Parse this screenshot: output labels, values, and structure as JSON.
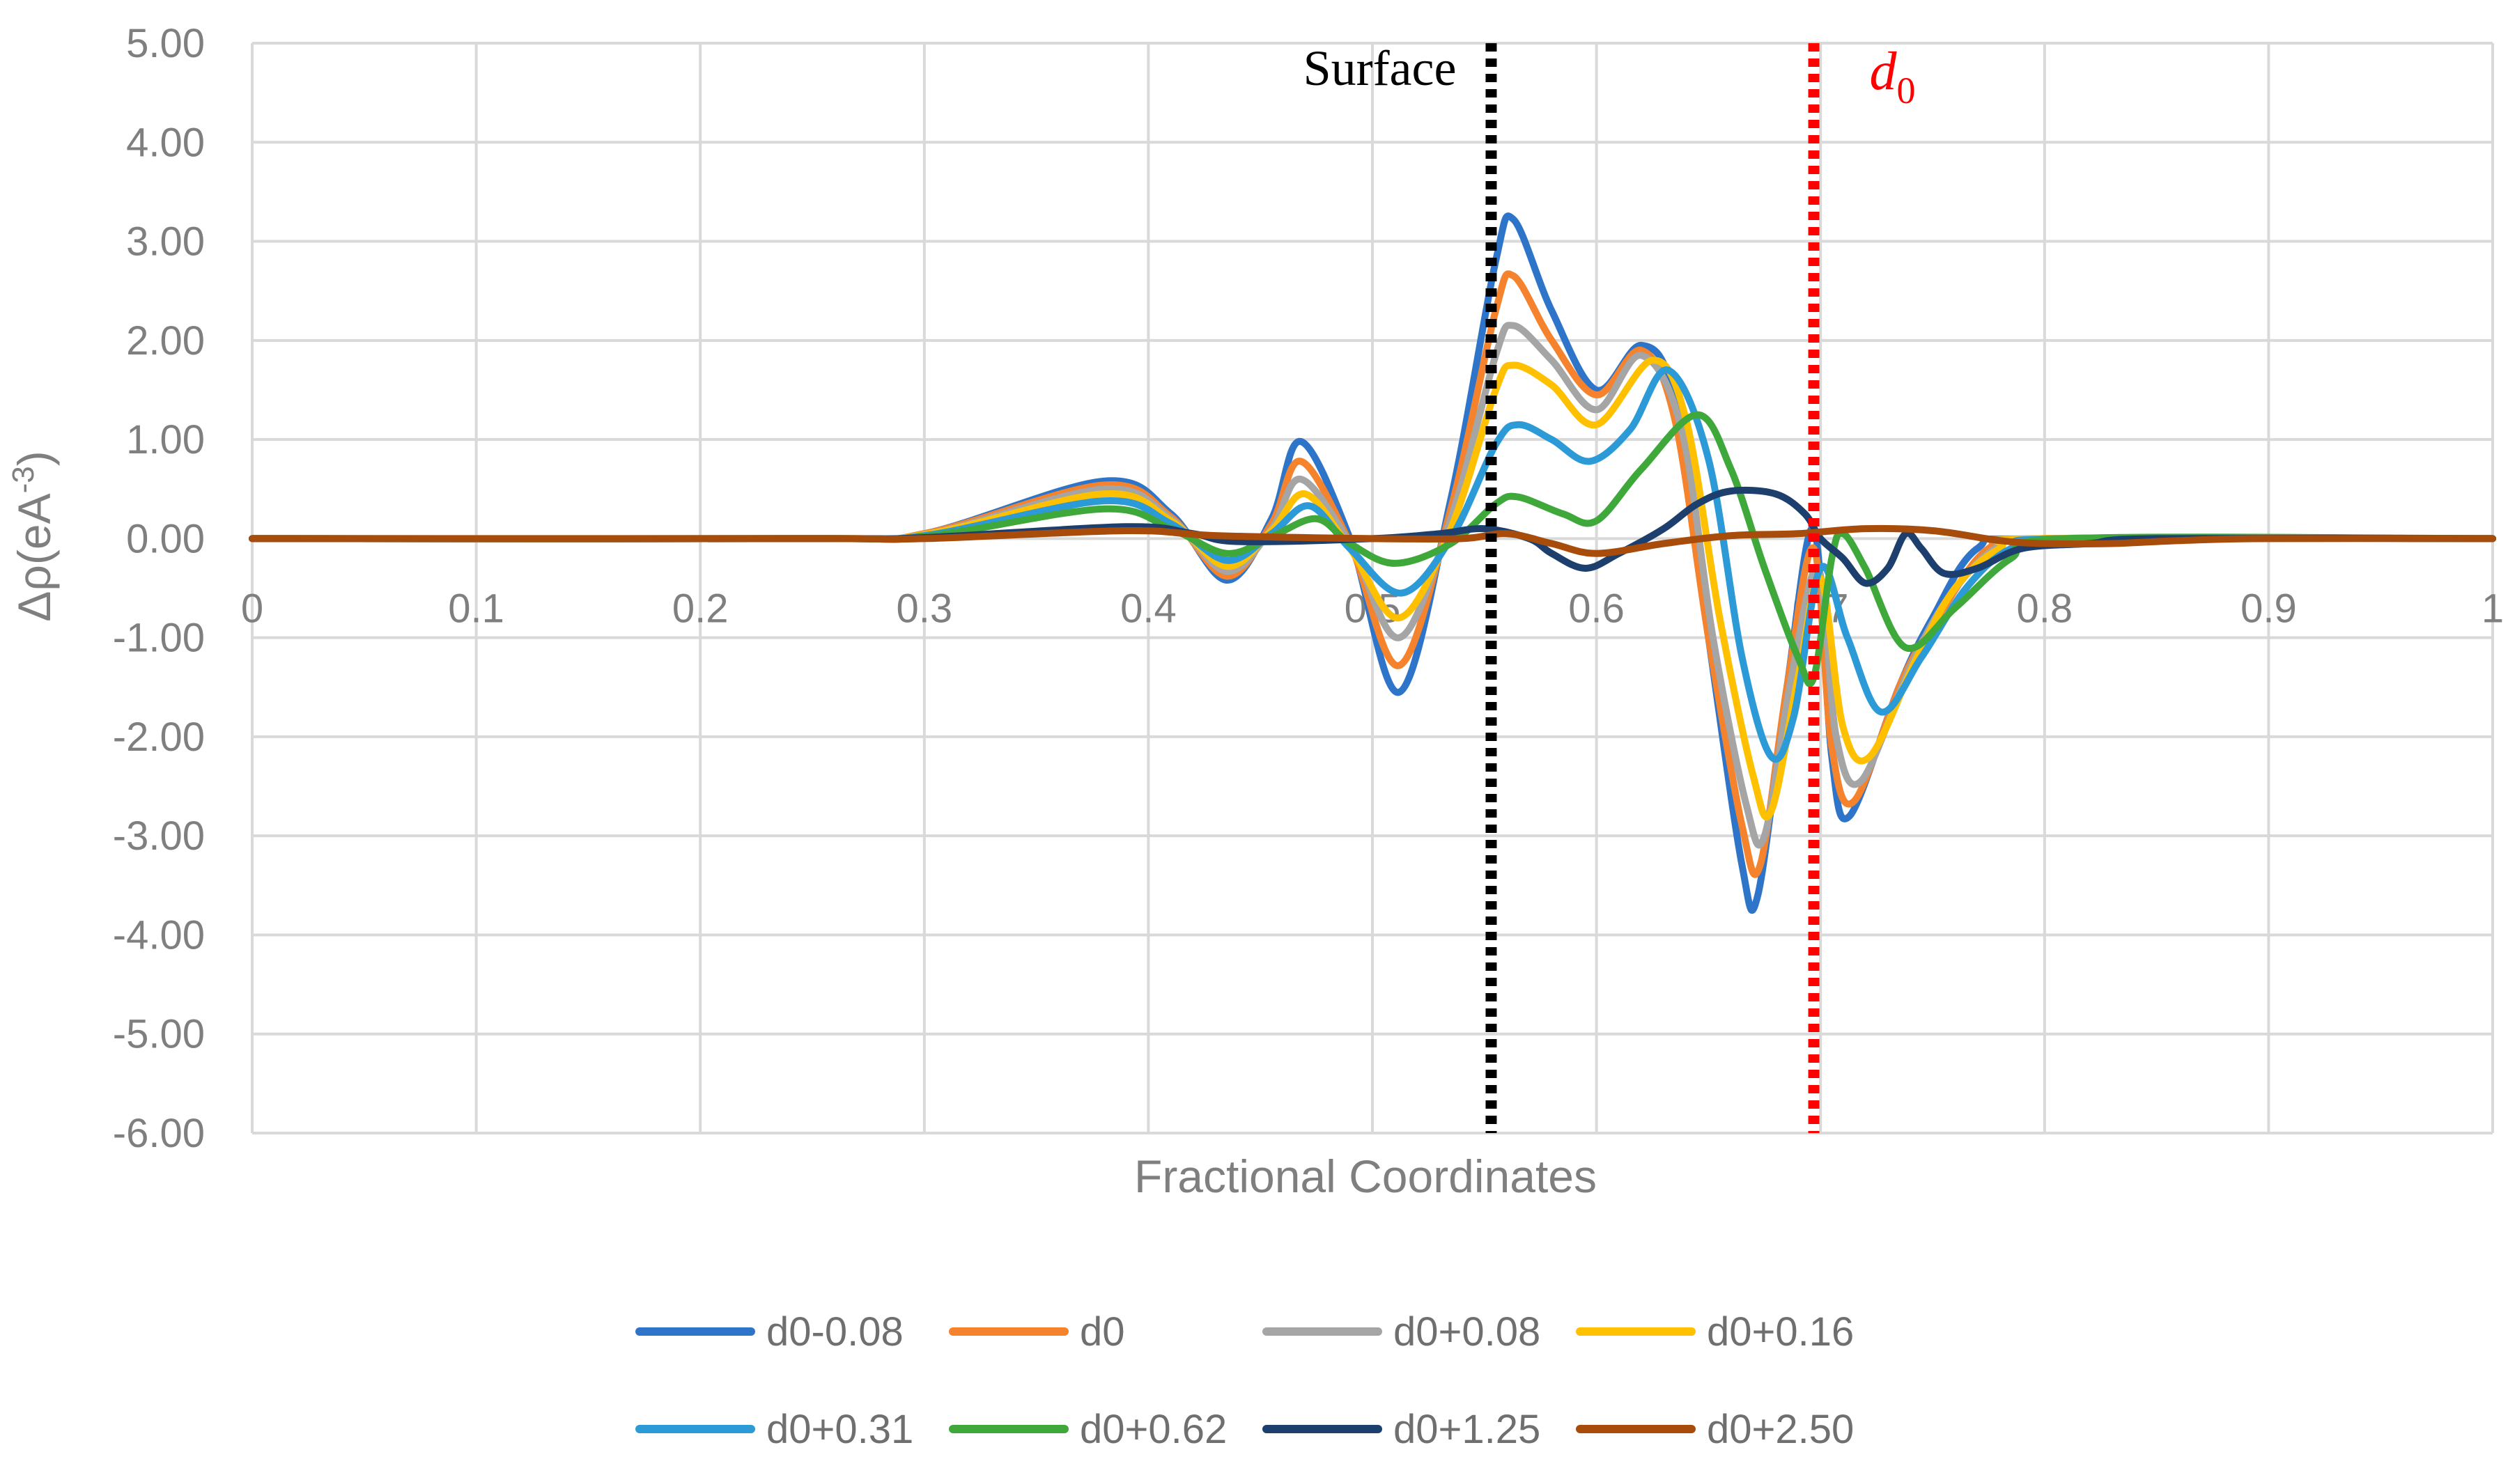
{
  "chart_data": {
    "type": "line",
    "title": "",
    "xlabel": "Fractional Coordinates",
    "ylabel": "Δρ(eA",
    "ylabel_sup": "-3",
    "ylabel_close": ")",
    "xlim": [
      0,
      1
    ],
    "ylim": [
      -6,
      5
    ],
    "grid": true,
    "legend_position": "bottom",
    "y_ticks": [
      {
        "value": 5,
        "label": "5.00"
      },
      {
        "value": 4,
        "label": "4.00"
      },
      {
        "value": 3,
        "label": "3.00"
      },
      {
        "value": 2,
        "label": "2.00"
      },
      {
        "value": 1,
        "label": "1.00"
      },
      {
        "value": 0,
        "label": "0.00"
      },
      {
        "value": -1,
        "label": "-1.00"
      },
      {
        "value": -2,
        "label": "-2.00"
      },
      {
        "value": -3,
        "label": "-3.00"
      },
      {
        "value": -4,
        "label": "-4.00"
      },
      {
        "value": -5,
        "label": "-5.00"
      },
      {
        "value": -6,
        "label": "-6.00"
      }
    ],
    "x_ticks": [
      {
        "value": 0,
        "label": "0"
      },
      {
        "value": 0.1,
        "label": "0.1"
      },
      {
        "value": 0.2,
        "label": "0.2"
      },
      {
        "value": 0.3,
        "label": "0.3"
      },
      {
        "value": 0.4,
        "label": "0.4"
      },
      {
        "value": 0.5,
        "label": "0.5"
      },
      {
        "value": 0.6,
        "label": "0.6"
      },
      {
        "value": 0.7,
        "label": "0.7"
      },
      {
        "value": 0.8,
        "label": "0.8"
      },
      {
        "value": 0.9,
        "label": "0.9"
      },
      {
        "value": 1,
        "label": "1"
      }
    ],
    "annotations": [
      {
        "text": "Surface",
        "x": 0.553,
        "color": "#000000",
        "style": "dotted"
      },
      {
        "text": "d",
        "subscript": "0",
        "x": 0.697,
        "color": "#ff0000",
        "style": "dotted"
      }
    ],
    "series": [
      {
        "name": "d0-0.08",
        "color": "#2e75c9",
        "points": [
          [
            0,
            0
          ],
          [
            0.25,
            0
          ],
          [
            0.3,
            0.05
          ],
          [
            0.38,
            0.58
          ],
          [
            0.41,
            0.25
          ],
          [
            0.435,
            -0.42
          ],
          [
            0.455,
            0.2
          ],
          [
            0.468,
            0.98
          ],
          [
            0.49,
            0
          ],
          [
            0.512,
            -1.55
          ],
          [
            0.535,
            0.4
          ],
          [
            0.555,
            2.8
          ],
          [
            0.563,
            3.22
          ],
          [
            0.58,
            2.3
          ],
          [
            0.6,
            1.5
          ],
          [
            0.62,
            1.95
          ],
          [
            0.635,
            1.4
          ],
          [
            0.65,
            -1.0
          ],
          [
            0.665,
            -3.3
          ],
          [
            0.672,
            -3.6
          ],
          [
            0.685,
            -1.5
          ],
          [
            0.697,
            0.1
          ],
          [
            0.705,
            -2.2
          ],
          [
            0.713,
            -2.8
          ],
          [
            0.735,
            -1.5
          ],
          [
            0.75,
            -0.8
          ],
          [
            0.77,
            -0.1
          ],
          [
            0.8,
            0
          ],
          [
            1,
            0
          ]
        ]
      },
      {
        "name": "d0",
        "color": "#f5822c",
        "points": [
          [
            0,
            0
          ],
          [
            0.25,
            0
          ],
          [
            0.3,
            0.05
          ],
          [
            0.38,
            0.54
          ],
          [
            0.41,
            0.22
          ],
          [
            0.435,
            -0.38
          ],
          [
            0.455,
            0.15
          ],
          [
            0.468,
            0.78
          ],
          [
            0.49,
            -0.05
          ],
          [
            0.512,
            -1.28
          ],
          [
            0.535,
            0.3
          ],
          [
            0.555,
            2.3
          ],
          [
            0.563,
            2.65
          ],
          [
            0.58,
            2.0
          ],
          [
            0.6,
            1.45
          ],
          [
            0.62,
            1.9
          ],
          [
            0.635,
            1.2
          ],
          [
            0.65,
            -1.0
          ],
          [
            0.665,
            -2.9
          ],
          [
            0.673,
            -3.3
          ],
          [
            0.685,
            -1.5
          ],
          [
            0.697,
            -0.1
          ],
          [
            0.705,
            -2.1
          ],
          [
            0.715,
            -2.65
          ],
          [
            0.737,
            -1.4
          ],
          [
            0.755,
            -0.7
          ],
          [
            0.775,
            -0.1
          ],
          [
            0.8,
            0
          ],
          [
            1,
            0
          ]
        ]
      },
      {
        "name": "d0+0.08",
        "color": "#a5a5a5",
        "points": [
          [
            0,
            0
          ],
          [
            0.25,
            0
          ],
          [
            0.3,
            0.04
          ],
          [
            0.38,
            0.5
          ],
          [
            0.41,
            0.2
          ],
          [
            0.435,
            -0.33
          ],
          [
            0.455,
            0.1
          ],
          [
            0.468,
            0.6
          ],
          [
            0.49,
            -0.05
          ],
          [
            0.512,
            -1.0
          ],
          [
            0.535,
            0.2
          ],
          [
            0.555,
            1.85
          ],
          [
            0.563,
            2.15
          ],
          [
            0.58,
            1.8
          ],
          [
            0.6,
            1.3
          ],
          [
            0.62,
            1.85
          ],
          [
            0.638,
            1.1
          ],
          [
            0.652,
            -1.0
          ],
          [
            0.667,
            -2.7
          ],
          [
            0.675,
            -3.0
          ],
          [
            0.687,
            -1.4
          ],
          [
            0.699,
            -0.3
          ],
          [
            0.707,
            -2.0
          ],
          [
            0.718,
            -2.45
          ],
          [
            0.74,
            -1.3
          ],
          [
            0.757,
            -0.6
          ],
          [
            0.778,
            -0.1
          ],
          [
            0.8,
            0
          ],
          [
            1,
            0
          ]
        ]
      },
      {
        "name": "d0+0.16",
        "color": "#ffc000",
        "points": [
          [
            0,
            0
          ],
          [
            0.25,
            0
          ],
          [
            0.3,
            0.04
          ],
          [
            0.38,
            0.45
          ],
          [
            0.41,
            0.18
          ],
          [
            0.435,
            -0.28
          ],
          [
            0.455,
            0.08
          ],
          [
            0.47,
            0.45
          ],
          [
            0.49,
            -0.1
          ],
          [
            0.512,
            -0.8
          ],
          [
            0.535,
            0.1
          ],
          [
            0.555,
            1.5
          ],
          [
            0.563,
            1.75
          ],
          [
            0.58,
            1.55
          ],
          [
            0.6,
            1.15
          ],
          [
            0.625,
            1.8
          ],
          [
            0.64,
            1.2
          ],
          [
            0.655,
            -0.8
          ],
          [
            0.67,
            -2.4
          ],
          [
            0.678,
            -2.75
          ],
          [
            0.69,
            -1.4
          ],
          [
            0.7,
            -0.4
          ],
          [
            0.71,
            -1.9
          ],
          [
            0.722,
            -2.2
          ],
          [
            0.743,
            -1.2
          ],
          [
            0.76,
            -0.5
          ],
          [
            0.78,
            -0.1
          ],
          [
            0.8,
            0
          ],
          [
            1,
            0
          ]
        ]
      },
      {
        "name": "d0+0.31",
        "color": "#2d9ad8",
        "points": [
          [
            0,
            0
          ],
          [
            0.25,
            0
          ],
          [
            0.3,
            0.03
          ],
          [
            0.38,
            0.38
          ],
          [
            0.41,
            0.15
          ],
          [
            0.435,
            -0.22
          ],
          [
            0.455,
            0.05
          ],
          [
            0.472,
            0.33
          ],
          [
            0.49,
            -0.1
          ],
          [
            0.513,
            -0.55
          ],
          [
            0.535,
            0.0
          ],
          [
            0.555,
            0.95
          ],
          [
            0.565,
            1.15
          ],
          [
            0.58,
            1.0
          ],
          [
            0.597,
            0.78
          ],
          [
            0.615,
            1.1
          ],
          [
            0.632,
            1.7
          ],
          [
            0.65,
            0.8
          ],
          [
            0.665,
            -1.2
          ],
          [
            0.678,
            -2.2
          ],
          [
            0.688,
            -1.8
          ],
          [
            0.7,
            -0.3
          ],
          [
            0.712,
            -1.0
          ],
          [
            0.727,
            -1.75
          ],
          [
            0.745,
            -1.2
          ],
          [
            0.765,
            -0.5
          ],
          [
            0.785,
            -0.1
          ],
          [
            0.81,
            0
          ],
          [
            1,
            0
          ]
        ]
      },
      {
        "name": "d0+0.62",
        "color": "#3fa83a",
        "points": [
          [
            0,
            0
          ],
          [
            0.25,
            0
          ],
          [
            0.3,
            0.02
          ],
          [
            0.38,
            0.3
          ],
          [
            0.41,
            0.1
          ],
          [
            0.435,
            -0.15
          ],
          [
            0.455,
            0.02
          ],
          [
            0.475,
            0.2
          ],
          [
            0.49,
            -0.05
          ],
          [
            0.51,
            -0.25
          ],
          [
            0.535,
            -0.05
          ],
          [
            0.555,
            0.35
          ],
          [
            0.565,
            0.42
          ],
          [
            0.585,
            0.25
          ],
          [
            0.6,
            0.18
          ],
          [
            0.62,
            0.7
          ],
          [
            0.645,
            1.25
          ],
          [
            0.66,
            0.7
          ],
          [
            0.675,
            -0.3
          ],
          [
            0.69,
            -1.2
          ],
          [
            0.697,
            -1.4
          ],
          [
            0.705,
            -0.2
          ],
          [
            0.71,
            0.05
          ],
          [
            0.72,
            -0.3
          ],
          [
            0.738,
            -1.1
          ],
          [
            0.76,
            -0.7
          ],
          [
            0.785,
            -0.2
          ],
          [
            0.81,
            0
          ],
          [
            1,
            0
          ]
        ]
      },
      {
        "name": "d0+1.25",
        "color": "#1d3f6e",
        "points": [
          [
            0,
            0
          ],
          [
            0.25,
            0
          ],
          [
            0.3,
            0.01
          ],
          [
            0.39,
            0.12
          ],
          [
            0.42,
            0.05
          ],
          [
            0.44,
            -0.03
          ],
          [
            0.5,
            0
          ],
          [
            0.53,
            0.05
          ],
          [
            0.55,
            0.1
          ],
          [
            0.57,
            0.0
          ],
          [
            0.58,
            -0.15
          ],
          [
            0.595,
            -0.3
          ],
          [
            0.61,
            -0.15
          ],
          [
            0.63,
            0.1
          ],
          [
            0.645,
            0.35
          ],
          [
            0.66,
            0.48
          ],
          [
            0.68,
            0.45
          ],
          [
            0.693,
            0.25
          ],
          [
            0.7,
            0.0
          ],
          [
            0.71,
            -0.2
          ],
          [
            0.72,
            -0.45
          ],
          [
            0.73,
            -0.3
          ],
          [
            0.738,
            0.05
          ],
          [
            0.745,
            -0.1
          ],
          [
            0.755,
            -0.35
          ],
          [
            0.77,
            -0.3
          ],
          [
            0.79,
            -0.1
          ],
          [
            0.82,
            -0.05
          ],
          [
            0.85,
            0
          ],
          [
            1,
            0
          ]
        ]
      },
      {
        "name": "d0+2.50",
        "color": "#a84c0c",
        "points": [
          [
            0,
            0
          ],
          [
            0.25,
            0
          ],
          [
            0.3,
            0
          ],
          [
            0.39,
            0.08
          ],
          [
            0.43,
            0.03
          ],
          [
            0.5,
            0.0
          ],
          [
            0.54,
            0.0
          ],
          [
            0.56,
            0.05
          ],
          [
            0.58,
            -0.05
          ],
          [
            0.6,
            -0.15
          ],
          [
            0.63,
            -0.05
          ],
          [
            0.66,
            0.03
          ],
          [
            0.69,
            0.05
          ],
          [
            0.72,
            0.1
          ],
          [
            0.75,
            0.08
          ],
          [
            0.78,
            -0.02
          ],
          [
            0.8,
            -0.05
          ],
          [
            0.83,
            -0.05
          ],
          [
            0.86,
            -0.02
          ],
          [
            0.9,
            0
          ],
          [
            1,
            0
          ]
        ]
      }
    ]
  }
}
